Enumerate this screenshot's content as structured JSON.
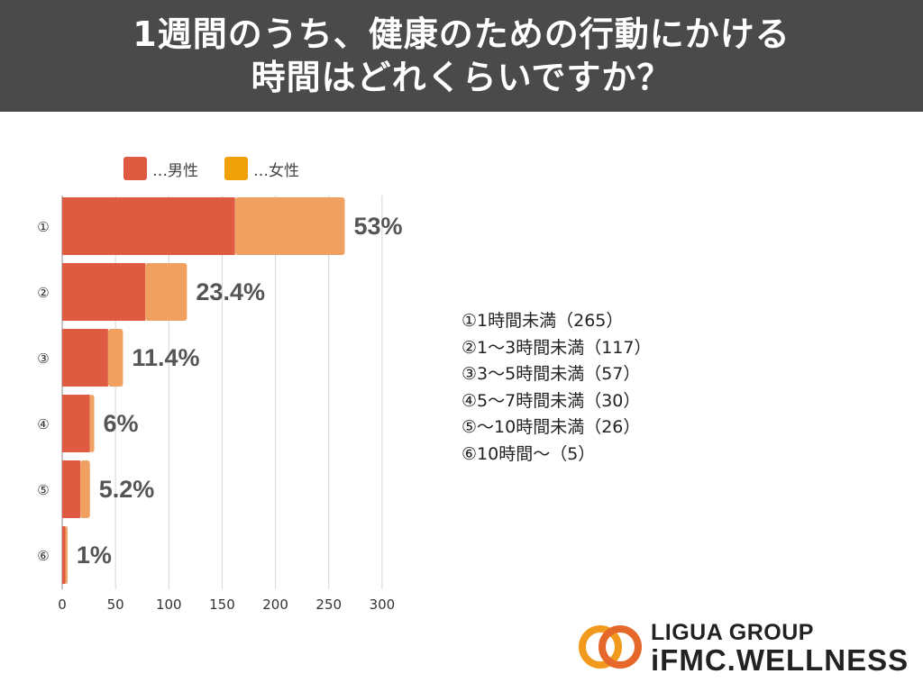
{
  "header": {
    "title_line1": "1週間のうち、健康のための行動にかける",
    "title_line2": "時間はどれくらいですか？",
    "background": "#4a4a4a"
  },
  "legend": [
    {
      "label": "…男性",
      "color": "#de5a40"
    },
    {
      "label": "…女性",
      "color": "#f0a060"
    }
  ],
  "chart_data": {
    "type": "bar",
    "orientation": "horizontal",
    "stacked": true,
    "categories": [
      "①",
      "②",
      "③",
      "④",
      "⑤",
      "⑥"
    ],
    "series": [
      {
        "name": "…男性",
        "color": "#de5a40",
        "values": [
          162,
          78,
          43,
          26,
          17,
          3
        ]
      },
      {
        "name": "…女性",
        "color": "#f0a060",
        "values": [
          103,
          39,
          14,
          4,
          9,
          2
        ]
      }
    ],
    "data_labels": [
      "53%",
      "23.4%",
      "11.4%",
      "6%",
      "5.2%",
      "1%"
    ],
    "xticks": [
      0,
      50,
      100,
      150,
      200,
      250,
      300
    ],
    "xlim": [
      0,
      300
    ],
    "grid": true
  },
  "notes": [
    "①1時間未満（265）",
    "②1～3時間未満（117）",
    "③3～5時間未満（57）",
    "④5～7時間未満（30）",
    "⑤～10時間未満（26）",
    "⑥10時間～（5）"
  ],
  "logo": {
    "line1": "LIGUA GROUP",
    "line2": "iFMC.WELLNESS",
    "ring_colors": [
      "#f29a1e",
      "#e5682a"
    ]
  }
}
